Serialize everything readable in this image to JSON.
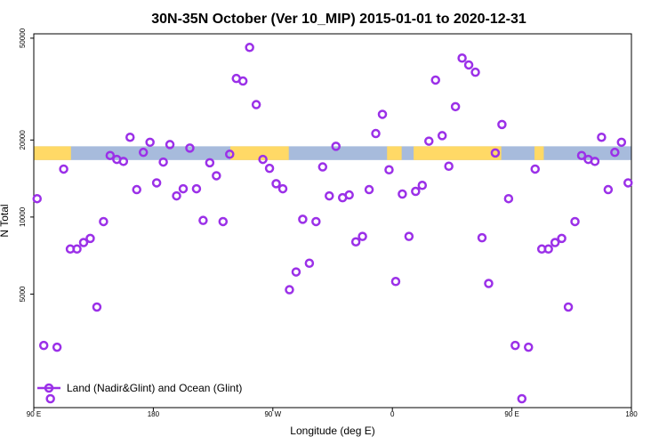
{
  "chart_data": {
    "type": "scatter",
    "title": "30N-35N October (Ver 10_MIP)   2015-01-01 to 2020-12-31",
    "xlabel": "Longitude (deg E)",
    "ylabel": "N Total",
    "x_ticks": [
      {
        "value": 90,
        "label": "90 E"
      },
      {
        "value": 180,
        "label": "180"
      },
      {
        "value": 270,
        "label": "90 W"
      },
      {
        "value": 360,
        "label": "0"
      },
      {
        "value": 450,
        "label": "90 E"
      },
      {
        "value": 540,
        "label": "180"
      }
    ],
    "y_ticks": [
      {
        "value": 5000,
        "label": "5000"
      },
      {
        "value": 10000,
        "label": "10000"
      },
      {
        "value": 20000,
        "label": "20000"
      },
      {
        "value": 50000,
        "label": "50000"
      }
    ],
    "xlim": [
      90,
      540
    ],
    "ylim": [
      1800,
      52000
    ],
    "y_scale": "log",
    "grid": false,
    "legend_position": "bottom-left",
    "series": [
      {
        "name": "Land (Nadir&Glint) and Ocean (Glint)",
        "color": "#9b30e8",
        "marker": "open-circle",
        "x": [
          92.5,
          97.5,
          102.5,
          107.5,
          112.5,
          117.5,
          122.5,
          127.5,
          132.5,
          137.5,
          142.5,
          147.5,
          152.5,
          157.5,
          162.5,
          167.5,
          172.5,
          177.5,
          182.5,
          187.5,
          192.5,
          197.5,
          202.5,
          207.5,
          212.5,
          217.5,
          222.5,
          227.5,
          232.5,
          237.5,
          242.5,
          247.5,
          252.5,
          257.5,
          262.5,
          267.5,
          272.5,
          277.5,
          282.5,
          287.5,
          292.5,
          297.5,
          302.5,
          307.5,
          312.5,
          317.5,
          322.5,
          327.5,
          332.5,
          337.5,
          342.5,
          347.5,
          352.5,
          357.5,
          362.5,
          367.5,
          372.5,
          377.5,
          382.5,
          387.5,
          392.5,
          397.5,
          402.5,
          407.5,
          412.5,
          417.5,
          422.5,
          427.5,
          432.5,
          437.5,
          442.5,
          447.5,
          452.5,
          457.5,
          462.5,
          467.5,
          472.5,
          477.5,
          482.5,
          487.5,
          492.5,
          497.5,
          502.5,
          507.5,
          512.5,
          517.5,
          522.5,
          527.5,
          532.5,
          537.5
        ],
        "y": [
          11800,
          3150,
          1950,
          3100,
          15400,
          7500,
          7500,
          7950,
          8250,
          4450,
          9600,
          17400,
          16800,
          16500,
          20500,
          12800,
          17900,
          19600,
          13600,
          16400,
          19200,
          12100,
          12900,
          18600,
          12900,
          9700,
          16300,
          14500,
          9600,
          17600,
          34800,
          34000,
          46000,
          27500,
          16800,
          15500,
          13500,
          12900,
          5200,
          6100,
          9800,
          6600,
          9600,
          15700,
          12100,
          18900,
          11900,
          12200,
          8000,
          8400,
          12800,
          21200,
          25200,
          15300,
          5600,
          12300,
          8400,
          12600,
          13300,
          19800,
          34300,
          20800,
          15800,
          27000,
          41800,
          39300,
          36800,
          8300,
          5500,
          17800,
          23000,
          11800,
          3150,
          1950,
          3100,
          15400,
          7500,
          7500,
          7950,
          8250,
          4450,
          9600,
          17400,
          16800,
          16500,
          20500,
          12800,
          17900,
          19600,
          13600
        ]
      }
    ],
    "surface_band": {
      "y_bottom": 16700,
      "y_top": 18900,
      "land_color": "#ffd966",
      "ocean_color": "#a7bbdc",
      "land_segments": [
        [
          90,
          118
        ],
        [
          238,
          282
        ],
        [
          356,
          367
        ],
        [
          376,
          442
        ],
        [
          467,
          474
        ]
      ]
    }
  }
}
